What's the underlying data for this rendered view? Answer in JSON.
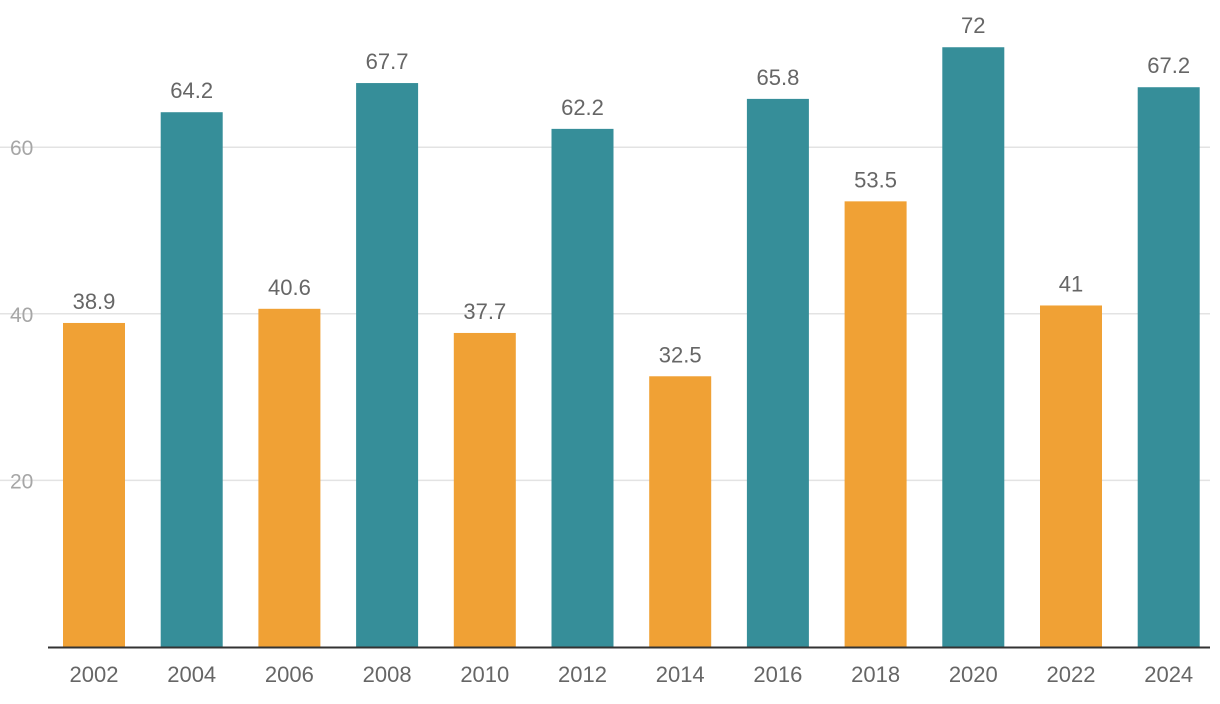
{
  "chart_data": {
    "type": "bar",
    "title": "",
    "xlabel": "",
    "ylabel": "",
    "categories": [
      "2002",
      "2004",
      "2006",
      "2008",
      "2010",
      "2012",
      "2014",
      "2016",
      "2018",
      "2020",
      "2022",
      "2024"
    ],
    "values": [
      38.9,
      64.2,
      40.6,
      67.7,
      37.7,
      62.2,
      32.5,
      65.8,
      53.5,
      72,
      41,
      67.2
    ],
    "data_labels": [
      "38.9",
      "64.2",
      "40.6",
      "67.7",
      "37.7",
      "62.2",
      "32.5",
      "65.8",
      "53.5",
      "72",
      "41",
      "67.2"
    ],
    "bar_colors": [
      "#f0a135",
      "#368e99",
      "#f0a135",
      "#368e99",
      "#f0a135",
      "#368e99",
      "#f0a135",
      "#368e99",
      "#f0a135",
      "#368e99",
      "#f0a135",
      "#368e99"
    ],
    "yticks": [
      20,
      40,
      60
    ],
    "ytick_labels": [
      "20",
      "40",
      "60"
    ],
    "ylim": [
      0,
      76.5
    ],
    "grid": true,
    "legend": "none"
  }
}
